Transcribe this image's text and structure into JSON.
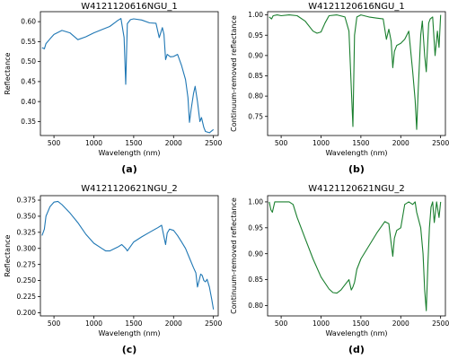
{
  "chart_data": [
    {
      "id": "a",
      "type": "line",
      "title": "W4121120616NGU_1",
      "xlabel": "Wavelength (nm)",
      "ylabel": "Reflectance",
      "caption": "(a)",
      "xlim": [
        330,
        2560
      ],
      "ylim": [
        0.315,
        0.625
      ],
      "xticks": [
        500,
        1000,
        1500,
        2000,
        2500
      ],
      "yticks": [
        0.35,
        0.4,
        0.45,
        0.5,
        0.55,
        0.6
      ],
      "ytick_labels": [
        "0.35",
        "0.40",
        "0.45",
        "0.50",
        "0.55",
        "0.60"
      ],
      "color": "#1f77b4",
      "x": [
        350,
        380,
        400,
        450,
        500,
        600,
        700,
        800,
        900,
        1000,
        1100,
        1200,
        1300,
        1340,
        1380,
        1400,
        1420,
        1460,
        1500,
        1600,
        1700,
        1780,
        1820,
        1860,
        1880,
        1900,
        1920,
        1960,
        2000,
        2050,
        2100,
        2150,
        2180,
        2200,
        2220,
        2250,
        2270,
        2300,
        2330,
        2350,
        2380,
        2400,
        2450,
        2500
      ],
      "y": [
        0.535,
        0.532,
        0.545,
        0.557,
        0.568,
        0.578,
        0.572,
        0.555,
        0.562,
        0.572,
        0.58,
        0.588,
        0.603,
        0.608,
        0.56,
        0.443,
        0.595,
        0.605,
        0.607,
        0.604,
        0.597,
        0.596,
        0.56,
        0.585,
        0.568,
        0.505,
        0.518,
        0.512,
        0.513,
        0.518,
        0.49,
        0.455,
        0.41,
        0.348,
        0.38,
        0.42,
        0.438,
        0.4,
        0.35,
        0.36,
        0.335,
        0.325,
        0.322,
        0.33
      ]
    },
    {
      "id": "b",
      "type": "line",
      "title": "W4121120616NGU_1",
      "xlabel": "Wavelength (nm)",
      "ylabel": "Continuum-removed reflectance",
      "caption": "(b)",
      "xlim": [
        330,
        2560
      ],
      "ylim": [
        0.703,
        1.008
      ],
      "xticks": [
        500,
        1000,
        1500,
        2000,
        2500
      ],
      "yticks": [
        0.75,
        0.8,
        0.85,
        0.9,
        0.95,
        1.0
      ],
      "ytick_labels": [
        "0.75",
        "0.80",
        "0.85",
        "0.90",
        "0.95",
        "1.00"
      ],
      "color": "#1a7f2e",
      "x": [
        350,
        380,
        400,
        450,
        500,
        600,
        700,
        800,
        900,
        950,
        1000,
        1050,
        1100,
        1200,
        1300,
        1350,
        1380,
        1400,
        1420,
        1450,
        1500,
        1600,
        1700,
        1780,
        1820,
        1850,
        1880,
        1900,
        1920,
        1950,
        2000,
        2050,
        2100,
        2150,
        2180,
        2200,
        2220,
        2250,
        2270,
        2300,
        2320,
        2350,
        2370,
        2400,
        2430,
        2460,
        2480,
        2500
      ],
      "y": [
        0.995,
        0.99,
        0.998,
        1.0,
        0.998,
        1.0,
        0.998,
        0.985,
        0.96,
        0.955,
        0.958,
        0.98,
        0.998,
        1.0,
        0.995,
        0.96,
        0.82,
        0.725,
        0.95,
        0.995,
        1.0,
        0.995,
        0.992,
        0.99,
        0.94,
        0.965,
        0.935,
        0.87,
        0.91,
        0.925,
        0.93,
        0.94,
        0.96,
        0.86,
        0.79,
        0.718,
        0.82,
        0.95,
        0.985,
        0.9,
        0.86,
        0.98,
        0.99,
        0.995,
        0.9,
        0.96,
        0.92,
        1.0
      ]
    },
    {
      "id": "c",
      "type": "line",
      "title": "W4121120621NGU_2",
      "xlabel": "Wavelength (nm)",
      "ylabel": "Reflectance",
      "caption": "(c)",
      "xlim": [
        330,
        2560
      ],
      "ylim": [
        0.195,
        0.382
      ],
      "xticks": [
        500,
        1000,
        1500,
        2000,
        2500
      ],
      "yticks": [
        0.2,
        0.225,
        0.25,
        0.275,
        0.3,
        0.325,
        0.35,
        0.375
      ],
      "ytick_labels": [
        "0.200",
        "0.225",
        "0.250",
        "0.275",
        "0.300",
        "0.325",
        "0.350",
        "0.375"
      ],
      "color": "#1f77b4",
      "x": [
        350,
        380,
        400,
        450,
        500,
        550,
        600,
        700,
        800,
        900,
        1000,
        1100,
        1150,
        1200,
        1300,
        1350,
        1400,
        1420,
        1500,
        1600,
        1700,
        1800,
        1850,
        1880,
        1900,
        1920,
        1950,
        2000,
        2050,
        2100,
        2150,
        2200,
        2250,
        2280,
        2300,
        2320,
        2340,
        2360,
        2380,
        2400,
        2420,
        2450,
        2480,
        2500
      ],
      "y": [
        0.32,
        0.33,
        0.35,
        0.365,
        0.372,
        0.373,
        0.368,
        0.355,
        0.34,
        0.322,
        0.308,
        0.3,
        0.296,
        0.296,
        0.302,
        0.306,
        0.3,
        0.296,
        0.31,
        0.318,
        0.325,
        0.332,
        0.336,
        0.318,
        0.306,
        0.324,
        0.33,
        0.328,
        0.32,
        0.31,
        0.3,
        0.285,
        0.27,
        0.262,
        0.24,
        0.25,
        0.26,
        0.258,
        0.25,
        0.248,
        0.252,
        0.24,
        0.22,
        0.205
      ]
    },
    {
      "id": "d",
      "type": "line",
      "title": "W4121120621NGU_2",
      "xlabel": "Wavelength (nm)",
      "ylabel": "Continuum-removed reflectance",
      "caption": "(d)",
      "xlim": [
        330,
        2560
      ],
      "ylim": [
        0.78,
        1.012
      ],
      "xticks": [
        500,
        1000,
        1500,
        2000,
        2500
      ],
      "yticks": [
        0.8,
        0.85,
        0.9,
        0.95,
        1.0
      ],
      "ytick_labels": [
        "0.80",
        "0.85",
        "0.90",
        "0.95",
        "1.00"
      ],
      "color": "#1a7f2e",
      "x": [
        350,
        370,
        390,
        420,
        500,
        600,
        650,
        700,
        800,
        900,
        1000,
        1100,
        1150,
        1200,
        1250,
        1300,
        1350,
        1380,
        1400,
        1420,
        1450,
        1500,
        1600,
        1700,
        1800,
        1850,
        1880,
        1900,
        1920,
        1950,
        2000,
        2050,
        2100,
        2150,
        2180,
        2200,
        2250,
        2280,
        2300,
        2320,
        2340,
        2360,
        2380,
        2400,
        2420,
        2450,
        2480,
        2500
      ],
      "y": [
        1.0,
        0.985,
        0.98,
        1.0,
        1.0,
        1.0,
        0.995,
        0.97,
        0.93,
        0.89,
        0.855,
        0.832,
        0.825,
        0.824,
        0.83,
        0.84,
        0.85,
        0.83,
        0.836,
        0.845,
        0.87,
        0.89,
        0.915,
        0.94,
        0.962,
        0.958,
        0.92,
        0.895,
        0.93,
        0.945,
        0.95,
        0.995,
        1.0,
        0.995,
        1.0,
        0.98,
        0.95,
        0.9,
        0.83,
        0.79,
        0.88,
        0.95,
        0.99,
        1.0,
        0.96,
        1.0,
        0.97,
        1.0
      ]
    }
  ]
}
